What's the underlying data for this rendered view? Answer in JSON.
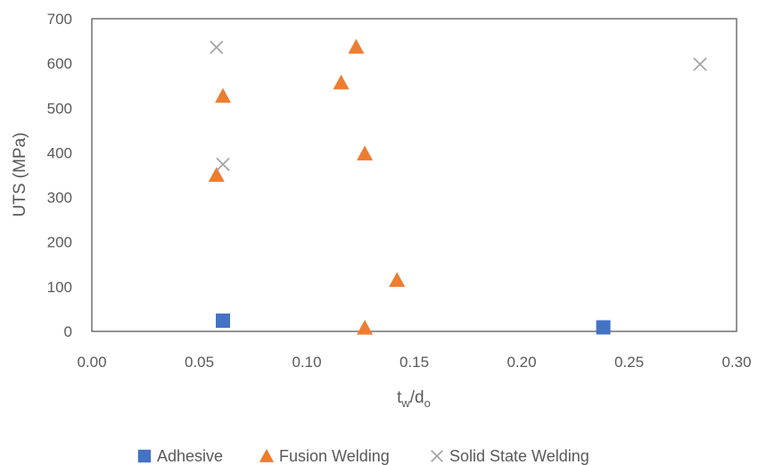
{
  "chart_data": {
    "type": "scatter",
    "title": "",
    "xlabel": {
      "base": "t",
      "sub1": "w",
      "sep": "/d",
      "sub2": "o"
    },
    "ylabel": "UTS (MPa)",
    "xlim": [
      0,
      0.3
    ],
    "ylim": [
      0,
      700
    ],
    "xticks": [
      "0.00",
      "0.05",
      "0.10",
      "0.15",
      "0.20",
      "0.25",
      "0.30"
    ],
    "yticks": [
      "0",
      "100",
      "200",
      "300",
      "400",
      "500",
      "600",
      "700"
    ],
    "grid": false,
    "legend_position": "bottom",
    "series": [
      {
        "name": "Adhesive",
        "marker": "square",
        "color": "#4472C4",
        "points": [
          {
            "x": 0.061,
            "y": 24
          },
          {
            "x": 0.238,
            "y": 9
          }
        ]
      },
      {
        "name": "Fusion Welding",
        "marker": "triangle",
        "color": "#ED7D31",
        "points": [
          {
            "x": 0.058,
            "y": 350
          },
          {
            "x": 0.061,
            "y": 527
          },
          {
            "x": 0.116,
            "y": 557
          },
          {
            "x": 0.123,
            "y": 637
          },
          {
            "x": 0.127,
            "y": 398
          },
          {
            "x": 0.127,
            "y": 8
          },
          {
            "x": 0.142,
            "y": 115
          }
        ]
      },
      {
        "name": "Solid State Welding",
        "marker": "x",
        "color": "#A5A5A5",
        "points": [
          {
            "x": 0.058,
            "y": 636
          },
          {
            "x": 0.061,
            "y": 374
          },
          {
            "x": 0.283,
            "y": 598
          }
        ]
      }
    ]
  }
}
